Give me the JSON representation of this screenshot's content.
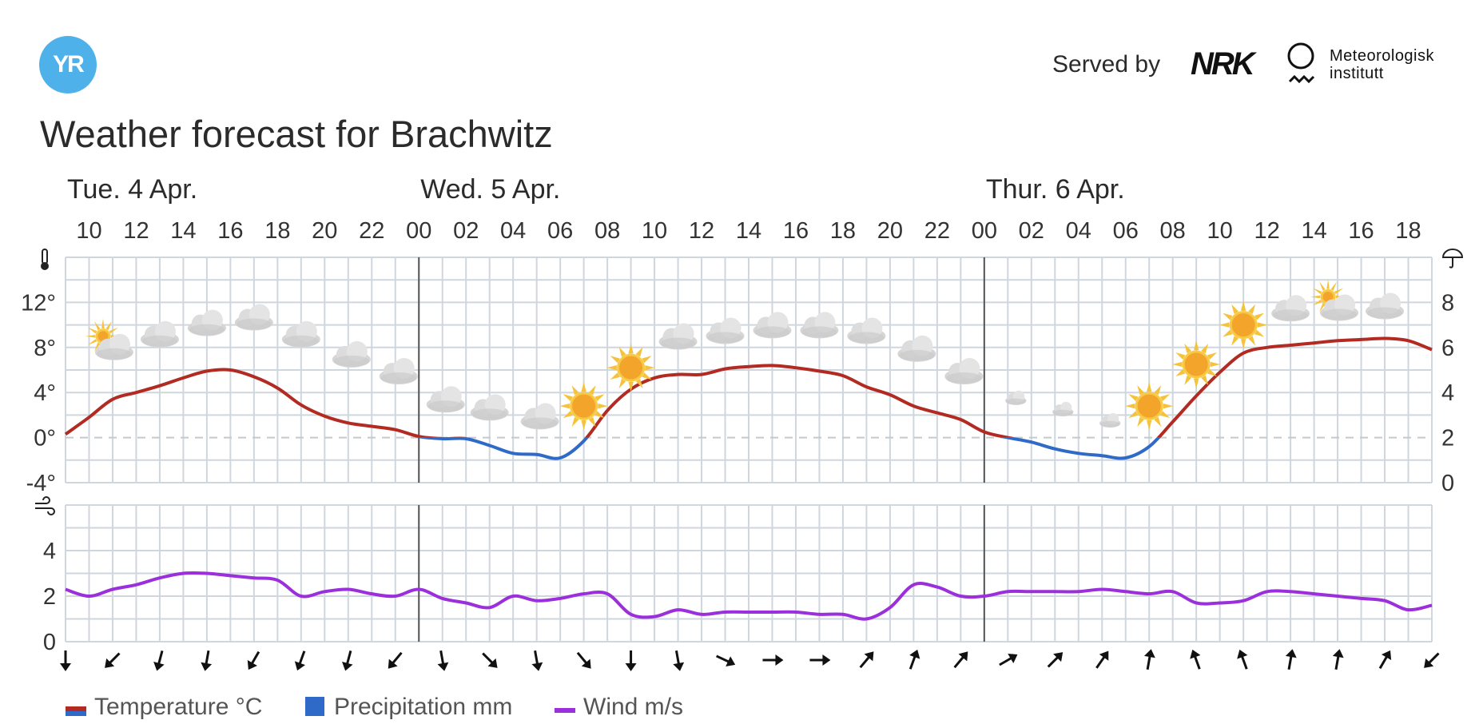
{
  "header": {
    "logo_text": "YR",
    "served_by": "Served by",
    "nrk_logo": "NRK",
    "met_line1": "Meteorologisk",
    "met_line2": "institutt"
  },
  "title": "Weather forecast for Brachwitz",
  "legend": {
    "temperature": "Temperature °C",
    "precipitation": "Precipitation mm",
    "wind": "Wind m/s"
  },
  "colors": {
    "temp_positive": "#b22b23",
    "temp_negative": "#2f6ac9",
    "wind": "#9b2fdc",
    "grid": "#cfd6de",
    "day_divider": "#555555",
    "zero_line": "#c4c9cf"
  },
  "icons": {
    "temperature_axis": "thermometer-icon",
    "precip_axis": "umbrella-icon",
    "wind_axis": "wind-icon"
  },
  "chart_data": {
    "type": "line",
    "days": [
      {
        "label": "Tue. 4 Apr.",
        "start_hour": 9
      },
      {
        "label": "Wed. 5 Apr.",
        "start_hour": 24
      },
      {
        "label": "Thur. 6 Apr.",
        "start_hour": 48
      }
    ],
    "x_range": [
      9,
      67
    ],
    "hour_labels": [
      "10",
      "12",
      "14",
      "16",
      "18",
      "20",
      "22",
      "00",
      "02",
      "04",
      "06",
      "08",
      "10",
      "12",
      "14",
      "16",
      "18",
      "20",
      "22",
      "00",
      "02",
      "04",
      "06",
      "08",
      "10",
      "12",
      "14",
      "16",
      "18"
    ],
    "hour_label_positions": [
      10,
      12,
      14,
      16,
      18,
      20,
      22,
      24,
      26,
      28,
      30,
      32,
      34,
      36,
      38,
      40,
      42,
      44,
      46,
      48,
      50,
      52,
      54,
      56,
      58,
      60,
      62,
      64,
      66
    ],
    "temperature": {
      "name": "Temperature °C",
      "ylim": [
        -4,
        16
      ],
      "y_ticks": [
        -4,
        0,
        4,
        8,
        12
      ],
      "y_tick_labels": [
        "-4°",
        "0°",
        "4°",
        "8°",
        "12°"
      ],
      "x": [
        9,
        10,
        11,
        12,
        13,
        14,
        15,
        16,
        17,
        18,
        19,
        20,
        21,
        22,
        23,
        24,
        25,
        26,
        27,
        28,
        29,
        30,
        31,
        32,
        33,
        34,
        35,
        36,
        37,
        38,
        39,
        40,
        41,
        42,
        43,
        44,
        45,
        46,
        47,
        48,
        49,
        50,
        51,
        52,
        53,
        54,
        55,
        56,
        57,
        58,
        59,
        60,
        61,
        62,
        63,
        64,
        65,
        66,
        67
      ],
      "values": [
        0.3,
        1.8,
        3.4,
        4.0,
        4.6,
        5.3,
        5.9,
        6.0,
        5.4,
        4.4,
        2.9,
        1.9,
        1.3,
        1.0,
        0.7,
        0.1,
        -0.1,
        -0.1,
        -0.7,
        -1.4,
        -1.5,
        -1.8,
        -0.3,
        2.4,
        4.3,
        5.3,
        5.6,
        5.6,
        6.1,
        6.3,
        6.4,
        6.2,
        5.9,
        5.5,
        4.5,
        3.8,
        2.8,
        2.2,
        1.6,
        0.5,
        0.0,
        -0.4,
        -1.0,
        -1.4,
        -1.6,
        -1.8,
        -0.8,
        1.4,
        3.7,
        5.8,
        7.5,
        8.0,
        8.2,
        8.4,
        8.6,
        8.7,
        8.8,
        8.6,
        7.8
      ]
    },
    "precipitation": {
      "name": "Precipitation mm",
      "ylim": [
        0,
        10
      ],
      "y_ticks": [
        0,
        2,
        4,
        6,
        8
      ],
      "y_tick_labels": [
        "0",
        "2",
        "4",
        "6",
        "8"
      ]
    },
    "wind": {
      "name": "Wind m/s",
      "ylim": [
        0,
        6
      ],
      "y_ticks": [
        0,
        2,
        4
      ],
      "y_tick_labels": [
        "0",
        "2",
        "4"
      ],
      "x": [
        9,
        10,
        11,
        12,
        13,
        14,
        15,
        16,
        17,
        18,
        19,
        20,
        21,
        22,
        23,
        24,
        25,
        26,
        27,
        28,
        29,
        30,
        31,
        32,
        33,
        34,
        35,
        36,
        37,
        38,
        39,
        40,
        41,
        42,
        43,
        44,
        45,
        46,
        47,
        48,
        49,
        50,
        51,
        52,
        53,
        54,
        55,
        56,
        57,
        58,
        59,
        60,
        61,
        62,
        63,
        64,
        65,
        66,
        67
      ],
      "values": [
        2.3,
        2.0,
        2.3,
        2.5,
        2.8,
        3.0,
        3.0,
        2.9,
        2.8,
        2.7,
        2.0,
        2.2,
        2.3,
        2.1,
        2.0,
        2.3,
        1.9,
        1.7,
        1.5,
        2.0,
        1.8,
        1.9,
        2.1,
        2.1,
        1.2,
        1.1,
        1.4,
        1.2,
        1.3,
        1.3,
        1.3,
        1.3,
        1.2,
        1.2,
        1.0,
        1.5,
        2.5,
        2.4,
        2.0,
        2.0,
        2.2,
        2.2,
        2.2,
        2.2,
        2.3,
        2.2,
        2.1,
        2.2,
        1.7,
        1.7,
        1.8,
        2.2,
        2.2,
        2.1,
        2.0,
        1.9,
        1.8,
        1.4,
        1.6
      ]
    },
    "weather_symbols": [
      {
        "hour": 11,
        "type": "partly-cloudy-day",
        "temp": 8
      },
      {
        "hour": 13,
        "type": "cloudy",
        "temp": 9
      },
      {
        "hour": 15,
        "type": "cloudy",
        "temp": 10
      },
      {
        "hour": 17,
        "type": "cloudy",
        "temp": 10.5
      },
      {
        "hour": 19,
        "type": "cloudy",
        "temp": 9
      },
      {
        "hour": 21,
        "type": "partly-cloudy-night",
        "temp": 7.5
      },
      {
        "hour": 23,
        "type": "partly-cloudy-night",
        "temp": 6
      },
      {
        "hour": 25,
        "type": "partly-cloudy-night",
        "temp": 3.5
      },
      {
        "hour": 27,
        "type": "cloudy",
        "temp": 2.5
      },
      {
        "hour": 29,
        "type": "partly-cloudy-night",
        "temp": 2
      },
      {
        "hour": 31,
        "type": "clear-sky-day",
        "temp": 2.8
      },
      {
        "hour": 33,
        "type": "clear-sky-day",
        "temp": 6.2
      },
      {
        "hour": 35,
        "type": "cloudy",
        "temp": 8.8
      },
      {
        "hour": 37,
        "type": "cloudy",
        "temp": 9.3
      },
      {
        "hour": 39,
        "type": "cloudy",
        "temp": 9.8
      },
      {
        "hour": 41,
        "type": "cloudy",
        "temp": 9.8
      },
      {
        "hour": 43,
        "type": "cloudy",
        "temp": 9.3
      },
      {
        "hour": 45,
        "type": "partly-cloudy-night",
        "temp": 8
      },
      {
        "hour": 47,
        "type": "partly-cloudy-night",
        "temp": 6
      },
      {
        "hour": 49,
        "type": "fair-night",
        "temp": 4
      },
      {
        "hour": 51,
        "type": "fair-night",
        "temp": 3
      },
      {
        "hour": 53,
        "type": "fair-night",
        "temp": 2
      },
      {
        "hour": 55,
        "type": "clear-sky-day",
        "temp": 2.8
      },
      {
        "hour": 57,
        "type": "clear-sky-day",
        "temp": 6.5
      },
      {
        "hour": 59,
        "type": "clear-sky-day",
        "temp": 10
      },
      {
        "hour": 61,
        "type": "cloudy",
        "temp": 11.3
      },
      {
        "hour": 63,
        "type": "partly-cloudy-day",
        "temp": 11.5
      },
      {
        "hour": 65,
        "type": "cloudy",
        "temp": 11.5
      }
    ],
    "wind_directions": [
      {
        "hour": 9,
        "rotation": 0
      },
      {
        "hour": 11,
        "rotation": 45
      },
      {
        "hour": 13,
        "rotation": 15
      },
      {
        "hour": 15,
        "rotation": 10
      },
      {
        "hour": 17,
        "rotation": 30
      },
      {
        "hour": 19,
        "rotation": 20
      },
      {
        "hour": 21,
        "rotation": 15
      },
      {
        "hour": 23,
        "rotation": 40
      },
      {
        "hour": 25,
        "rotation": -10
      },
      {
        "hour": 27,
        "rotation": -45
      },
      {
        "hour": 29,
        "rotation": -10
      },
      {
        "hour": 31,
        "rotation": -40
      },
      {
        "hour": 33,
        "rotation": 0
      },
      {
        "hour": 35,
        "rotation": -10
      },
      {
        "hour": 37,
        "rotation": -65
      },
      {
        "hour": 39,
        "rotation": -90
      },
      {
        "hour": 41,
        "rotation": -90
      },
      {
        "hour": 43,
        "rotation": -140
      },
      {
        "hour": 45,
        "rotation": -160
      },
      {
        "hour": 47,
        "rotation": -140
      },
      {
        "hour": 49,
        "rotation": -120
      },
      {
        "hour": 51,
        "rotation": -135
      },
      {
        "hour": 53,
        "rotation": -145
      },
      {
        "hour": 55,
        "rotation": -170
      },
      {
        "hour": 57,
        "rotation": 160
      },
      {
        "hour": 59,
        "rotation": 160
      },
      {
        "hour": 61,
        "rotation": -170
      },
      {
        "hour": 63,
        "rotation": -170
      },
      {
        "hour": 65,
        "rotation": -150
      },
      {
        "hour": 67,
        "rotation": 45
      }
    ]
  }
}
